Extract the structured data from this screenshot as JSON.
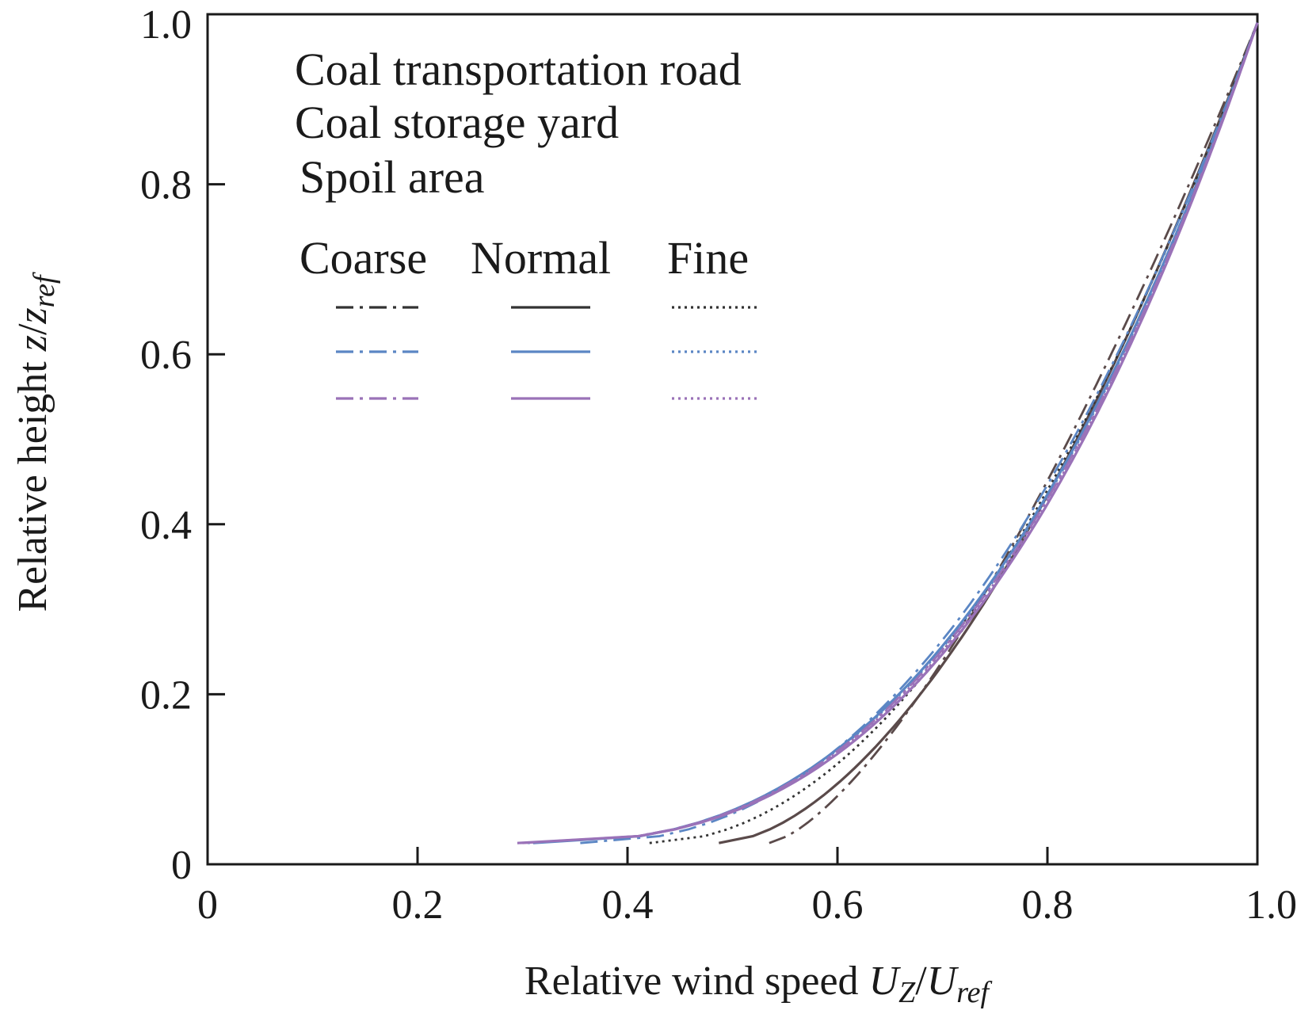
{
  "chart_data": {
    "type": "line",
    "xlabel": "Relative wind speed ",
    "xlabel_var": "U",
    "xlabel_sub": "Z",
    "xlabel_slash": "/",
    "xlabel_var2": "U",
    "xlabel_sub2": "ref",
    "ylabel": "Relative height ",
    "ylabel_var": "z",
    "ylabel_slash": "/",
    "ylabel_var2": "z",
    "ylabel_sub2": "ref",
    "xlim": [
      0,
      1.0
    ],
    "ylim": [
      0,
      1.0
    ],
    "xticks": [
      {
        "v": 0,
        "label": "0"
      },
      {
        "v": 0.2,
        "label": "0.2"
      },
      {
        "v": 0.4,
        "label": "0.4"
      },
      {
        "v": 0.6,
        "label": "0.6"
      },
      {
        "v": 0.8,
        "label": "0.8"
      },
      {
        "v": 1.0,
        "label": "1.0"
      }
    ],
    "yticks": [
      {
        "v": 0,
        "label": "0"
      },
      {
        "v": 0.2,
        "label": "0.2"
      },
      {
        "v": 0.4,
        "label": "0.4"
      },
      {
        "v": 0.6,
        "label": "0.6"
      },
      {
        "v": 0.8,
        "label": "0.8"
      },
      {
        "v": 1.0,
        "label": "1.0"
      }
    ],
    "legend": {
      "placement": "top-left",
      "rows": [
        "Coal transportation road",
        "Coal storage yard",
        "Spoil area"
      ],
      "columns": [
        "Coarse",
        "Normal",
        "Fine"
      ]
    },
    "colors": {
      "road": "#333333",
      "yard": "#5b86c4",
      "spoil": "#9a72b8",
      "road_normal": "#5a4a4a"
    },
    "series": [
      {
        "name": "Coal transportation road — Coarse",
        "style": "dashdot",
        "color": "#5a4a4a",
        "alpha": 0.215,
        "x0": 0.535,
        "z0": 0.025
      },
      {
        "name": "Coal transportation road — Normal",
        "style": "solid",
        "color": "#5a4a4a",
        "alpha": 0.18,
        "x0": 0.487,
        "z0": 0.025
      },
      {
        "name": "Coal transportation road — Fine",
        "style": "dotted",
        "color": "#333333",
        "alpha": 0.157,
        "x0": 0.421,
        "z0": 0.025
      },
      {
        "name": "Coal storage yard — Coarse",
        "style": "dashdot",
        "color": "#5b86c4",
        "alpha": 0.14,
        "x0": 0.355,
        "z0": 0.025
      },
      {
        "name": "Coal storage yard — Normal",
        "style": "solid",
        "color": "#5b86c4",
        "alpha": 0.125,
        "x0": 0.31,
        "z0": 0.025
      },
      {
        "name": "Coal storage yard — Fine",
        "style": "dotted",
        "color": "#5b86c4",
        "alpha": 0.123,
        "x0": 0.305,
        "z0": 0.025
      },
      {
        "name": "Spoil area — Coarse",
        "style": "dashdot",
        "color": "#9a72b8",
        "alpha": 0.121,
        "x0": 0.3,
        "z0": 0.025
      },
      {
        "name": "Spoil area — Normal",
        "style": "solid",
        "color": "#9a72b8",
        "alpha": 0.118,
        "x0": 0.295,
        "z0": 0.025
      },
      {
        "name": "Spoil area — Fine",
        "style": "dotted",
        "color": "#9a72b8",
        "alpha": 0.12,
        "x0": 0.298,
        "z0": 0.025
      }
    ]
  }
}
